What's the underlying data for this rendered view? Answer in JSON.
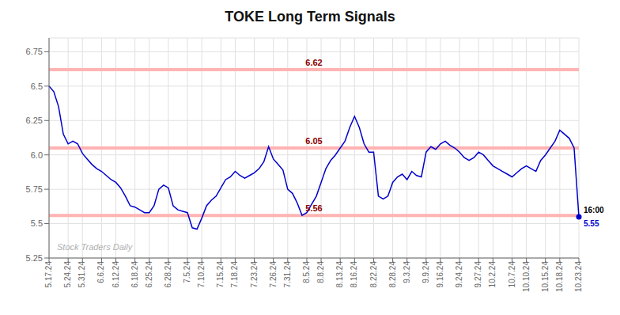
{
  "chart_data": {
    "type": "line",
    "title": "TOKE Long Term Signals",
    "categories": [
      "5.17.24",
      null,
      null,
      null,
      "5.24.24",
      null,
      null,
      "5.31.24",
      null,
      null,
      null,
      "6.6.24",
      null,
      null,
      "6.12.24",
      null,
      null,
      null,
      "6.18.24",
      null,
      null,
      "6.25.24",
      null,
      null,
      null,
      "6.28.24",
      null,
      null,
      null,
      "7.5.24",
      null,
      null,
      "7.10.24",
      null,
      null,
      null,
      "7.15.24",
      null,
      null,
      "7.18.24",
      null,
      null,
      null,
      "7.23.24",
      null,
      null,
      null,
      "7.26.24",
      null,
      null,
      "7.31.24",
      null,
      null,
      null,
      "8.5.24",
      null,
      null,
      "8.8.24",
      null,
      null,
      null,
      "8.13.24",
      null,
      null,
      "8.16.24",
      null,
      null,
      null,
      "8.22.24",
      null,
      null,
      null,
      "8.28.24",
      null,
      null,
      "9.3.24",
      null,
      null,
      null,
      "9.9.24",
      null,
      null,
      "9.16.24",
      null,
      null,
      null,
      "9.24.24",
      null,
      null,
      null,
      "9.27.24",
      null,
      null,
      "10.2.24",
      null,
      null,
      null,
      "10.7.24",
      null,
      null,
      "10.10.24",
      null,
      null,
      null,
      "10.15.24",
      null,
      null,
      "10.18.24",
      null,
      null,
      null,
      "10.23.24"
    ],
    "values": [
      6.5,
      6.46,
      6.35,
      6.15,
      6.08,
      6.1,
      6.08,
      6.01,
      5.97,
      5.93,
      5.9,
      5.88,
      5.85,
      5.82,
      5.8,
      5.76,
      5.7,
      5.63,
      5.62,
      5.6,
      5.58,
      5.58,
      5.63,
      5.75,
      5.78,
      5.76,
      5.63,
      5.6,
      5.59,
      5.58,
      5.47,
      5.46,
      5.54,
      5.63,
      5.67,
      5.7,
      5.76,
      5.82,
      5.84,
      5.88,
      5.85,
      5.83,
      5.85,
      5.87,
      5.9,
      5.95,
      6.06,
      5.97,
      5.93,
      5.89,
      5.75,
      5.72,
      5.65,
      5.56,
      5.58,
      5.64,
      5.7,
      5.8,
      5.9,
      5.96,
      6.0,
      6.05,
      6.1,
      6.2,
      6.28,
      6.2,
      6.08,
      6.02,
      6.02,
      5.7,
      5.68,
      5.7,
      5.8,
      5.84,
      5.86,
      5.82,
      5.88,
      5.85,
      5.84,
      6.02,
      6.06,
      6.04,
      6.08,
      6.1,
      6.07,
      6.05,
      6.02,
      5.98,
      5.96,
      5.98,
      6.02,
      6.0,
      5.96,
      5.92,
      5.9,
      5.88,
      5.86,
      5.84,
      5.87,
      5.9,
      5.92,
      5.9,
      5.88,
      5.96,
      6.0,
      6.05,
      6.1,
      6.18,
      6.15,
      6.12,
      6.05,
      5.55
    ],
    "color": "#0000cc",
    "ylim": [
      5.25,
      6.85
    ],
    "yticks": [
      5.25,
      5.5,
      5.75,
      {
        "value": 6.0,
        "label": "6.0"
      },
      6.25,
      6.5,
      6.75
    ],
    "grid": true,
    "reference_lines": [
      {
        "value": 6.62,
        "label": "6.62",
        "color": "#ffb3b3",
        "label_color": "#8b0000"
      },
      {
        "value": 6.05,
        "label": "6.05",
        "color": "#ffb3b3",
        "label_color": "#8b0000"
      },
      {
        "value": 5.56,
        "label": "5.56",
        "color": "#ffb3b3",
        "label_color": "#8b0000"
      }
    ],
    "watermark": {
      "text": "Stock Traders Daily",
      "color": "#b0b0b0"
    },
    "end_point": {
      "label": "16:00",
      "label_color": "#000000",
      "value": 5.55,
      "color": "#0000cc",
      "marker": "circle"
    }
  }
}
